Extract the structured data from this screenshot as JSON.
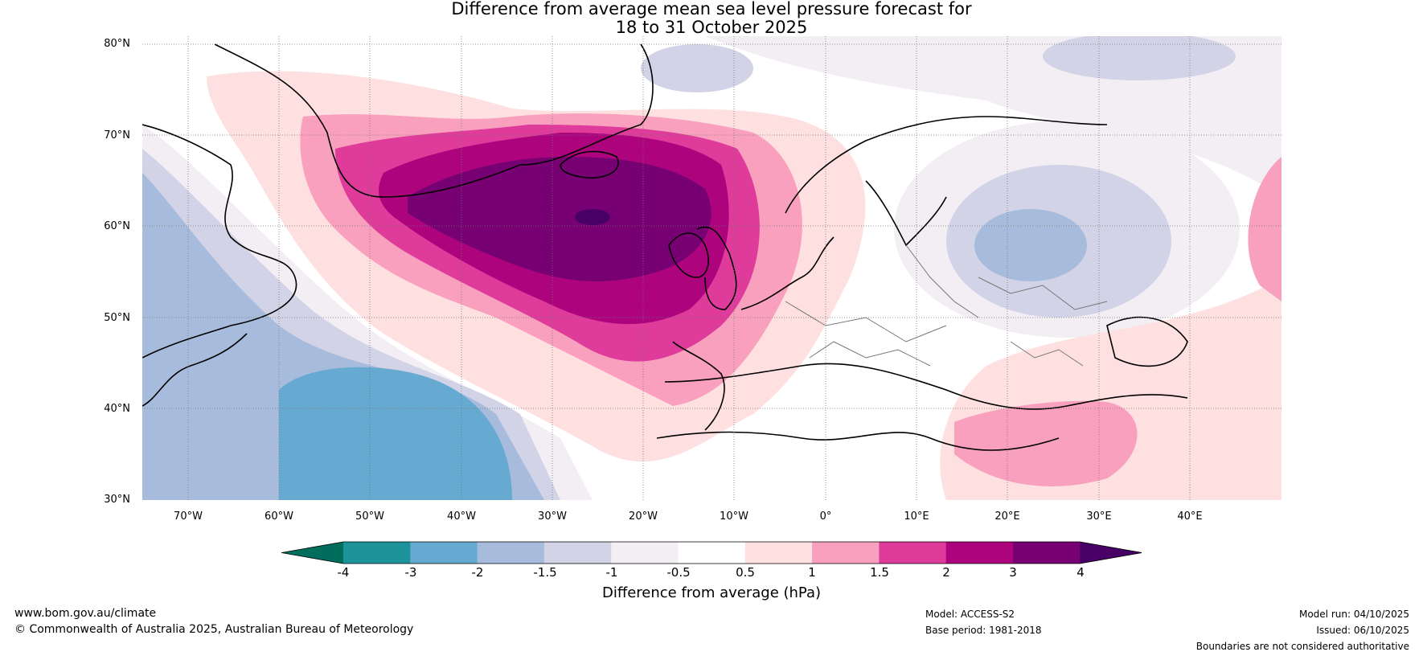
{
  "title": {
    "line1": "Difference from average mean sea level pressure forecast for",
    "line2": "18 to 31 October 2025"
  },
  "map": {
    "lat_labels": [
      "80°N",
      "70°N",
      "60°N",
      "50°N",
      "40°N",
      "30°N"
    ],
    "lon_labels": [
      "70°W",
      "60°W",
      "50°W",
      "40°W",
      "30°W",
      "20°W",
      "10°W",
      "0°",
      "10°E",
      "20°E",
      "30°E",
      "40°E"
    ],
    "lat_range": [
      30,
      81
    ],
    "lon_range": [
      -75,
      50
    ]
  },
  "colorbar": {
    "ticks": [
      "-4",
      "-3",
      "-2",
      "-1.5",
      "-1",
      "-0.5",
      "0.5",
      "1",
      "1.5",
      "2",
      "3",
      "4"
    ],
    "colors": {
      "below_min": "#006d5d",
      "n4_n3": "#1c9399",
      "n3_n2": "#67aad1",
      "n2_n15": "#a7bcdc",
      "n15_n1": "#d2d3e6",
      "n1_n05": "#f2eef4",
      "n05_05": "#ffffff",
      "p05_1": "#fde0df",
      "p1_15": "#f8a0bd",
      "p15_2": "#de3b9a",
      "p2_3": "#ad047e",
      "p3_4": "#770073",
      "above_max": "#480066"
    },
    "label": "Difference from average (hPa)"
  },
  "footer": {
    "website": "www.bom.gov.au/climate",
    "copyright": "© Commonwealth of Australia 2025, Australian Bureau of Meteorology",
    "model": "Model: ACCESS-S2",
    "base_period": "Base period: 1981-2018",
    "model_run": "Model run: 04/10/2025",
    "issued": "Issued: 06/10/2025",
    "disclaimer": "Boundaries are not considered authoritative"
  }
}
